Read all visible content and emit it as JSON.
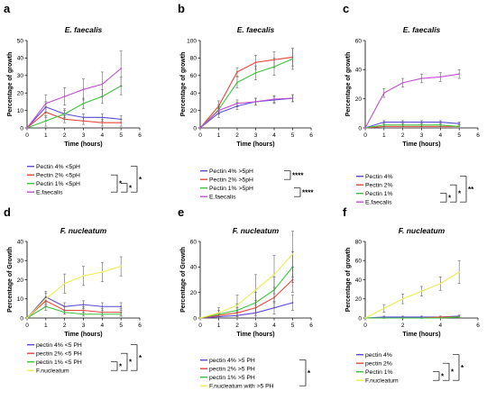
{
  "colors": {
    "purple": "#5b4bd6",
    "red": "#e8453c",
    "green": "#3cc43c",
    "magenta": "#c050d0",
    "yellow": "#ecec50",
    "axis": "#000000",
    "err": "#666666"
  },
  "chart_data": [
    {
      "type": "line",
      "panel": "a",
      "title": "E. faecalis",
      "xlabel": "Time (hours)",
      "ylabel": "Percentage of growth",
      "xlim": [
        0,
        6
      ],
      "ylim": [
        0,
        50
      ],
      "xticks": [
        "0",
        "1",
        "2",
        "3",
        "4",
        "5",
        "6"
      ],
      "yticks": [
        "0",
        "10",
        "20",
        "30",
        "40",
        "50"
      ],
      "x": [
        0,
        1,
        2,
        3,
        4,
        5
      ],
      "series": [
        {
          "name": "Pectin 4% <5pH",
          "color": "#5b4bd6",
          "values": [
            0,
            12,
            8,
            6,
            6,
            5
          ],
          "err": [
            0,
            3,
            2,
            2,
            2,
            2
          ]
        },
        {
          "name": "Pectin 2% <5pH",
          "color": "#e8453c",
          "values": [
            0,
            9,
            5,
            4,
            3,
            3
          ],
          "err": [
            0,
            3,
            2,
            2,
            2,
            2
          ]
        },
        {
          "name": "Pectin 1% <5pH",
          "color": "#3cc43c",
          "values": [
            0,
            4,
            8,
            14,
            18,
            24
          ],
          "err": [
            0,
            3,
            3,
            3,
            4,
            5
          ]
        },
        {
          "name": "E.faecalis",
          "color": "#c050d0",
          "values": [
            0,
            14,
            18,
            22,
            25,
            34
          ],
          "err": [
            0,
            5,
            5,
            6,
            7,
            10
          ]
        }
      ],
      "brackets": [
        {
          "from": 1,
          "to": 3,
          "label": "*"
        },
        {
          "from": 2,
          "to": 3,
          "label": "*"
        },
        {
          "from": 0,
          "to": 3,
          "label": "*"
        }
      ]
    },
    {
      "type": "line",
      "panel": "b",
      "title": "E. faecalis",
      "xlabel": "Time (hours)",
      "ylabel": "Percentage of growth",
      "xlim": [
        0,
        6
      ],
      "ylim": [
        0,
        100
      ],
      "xticks": [
        "0",
        "1",
        "2",
        "3",
        "4",
        "5",
        "6"
      ],
      "yticks": [
        "0",
        "20",
        "40",
        "60",
        "80",
        "100"
      ],
      "x": [
        0,
        1,
        2,
        3,
        4,
        5
      ],
      "series": [
        {
          "name": "Pectin 4% >5pH",
          "color": "#5b4bd6",
          "values": [
            0,
            17,
            25,
            30,
            32,
            34
          ],
          "err": [
            0,
            5,
            4,
            4,
            4,
            4
          ]
        },
        {
          "name": "Pectin 2% >5pH",
          "color": "#e8453c",
          "values": [
            0,
            25,
            64,
            75,
            78,
            81
          ],
          "err": [
            0,
            6,
            5,
            8,
            9,
            10
          ]
        },
        {
          "name": "Pectin 1% >5pH",
          "color": "#3cc43c",
          "values": [
            0,
            21,
            52,
            63,
            70,
            79
          ],
          "err": [
            0,
            5,
            6,
            8,
            10,
            12
          ]
        },
        {
          "name": "E.faecalis",
          "color": "#c050d0",
          "values": [
            0,
            20,
            28,
            30,
            33,
            34
          ],
          "err": [
            0,
            4,
            4,
            4,
            4,
            4
          ]
        }
      ],
      "brackets": [
        {
          "from": 0,
          "to": 1,
          "label": "****"
        },
        {
          "from": 2,
          "to": 3,
          "label": "****"
        }
      ]
    },
    {
      "type": "line",
      "panel": "c",
      "title": "E. faecalis",
      "xlabel": "Time (hours)",
      "ylabel": "Percentage of growth",
      "xlim": [
        0,
        6
      ],
      "ylim": [
        0,
        60
      ],
      "xticks": [
        "0",
        "1",
        "2",
        "3",
        "4",
        "5",
        "6"
      ],
      "yticks": [
        "0",
        "20",
        "40",
        "60"
      ],
      "x": [
        0,
        1,
        2,
        3,
        4,
        5
      ],
      "series": [
        {
          "name": "Pectin 4%",
          "color": "#5b4bd6",
          "values": [
            0,
            4,
            4,
            4,
            4,
            3
          ],
          "err": [
            0,
            1,
            1,
            1,
            1,
            1
          ]
        },
        {
          "name": "Pectin 2%",
          "color": "#e8453c",
          "values": [
            0,
            1,
            1,
            1,
            1,
            1
          ],
          "err": [
            0,
            1,
            1,
            1,
            1,
            1
          ]
        },
        {
          "name": "Pectin 1%",
          "color": "#3cc43c",
          "values": [
            0,
            2,
            2,
            2,
            2,
            1
          ],
          "err": [
            0,
            1,
            1,
            1,
            1,
            1
          ]
        },
        {
          "name": "E.faecalis",
          "color": "#c050d0",
          "values": [
            0,
            24,
            31,
            34,
            35,
            37
          ],
          "err": [
            0,
            3,
            3,
            3,
            3,
            3
          ]
        }
      ],
      "brackets": [
        {
          "from": 2,
          "to": 3,
          "label": "*"
        },
        {
          "from": 1,
          "to": 3,
          "label": "*"
        },
        {
          "from": 0,
          "to": 3,
          "label": "**"
        }
      ]
    },
    {
      "type": "line",
      "panel": "d",
      "title": "F. nucleatum",
      "xlabel": "Time (hours)",
      "ylabel": "Percentage of Growth",
      "xlim": [
        0,
        6
      ],
      "ylim": [
        0,
        40
      ],
      "xticks": [
        "0",
        "1",
        "2",
        "3",
        "4",
        "5",
        "6"
      ],
      "yticks": [
        "0",
        "10",
        "20",
        "30",
        "40"
      ],
      "x": [
        0,
        1,
        2,
        3,
        4,
        5
      ],
      "series": [
        {
          "name": "pectin 4% <5 PH",
          "color": "#5b4bd6",
          "values": [
            0,
            11,
            6,
            7,
            6,
            6
          ],
          "err": [
            0,
            2,
            2,
            2,
            2,
            2
          ]
        },
        {
          "name": "pectin 2% <5 PH",
          "color": "#e8453c",
          "values": [
            0,
            9,
            4,
            4,
            3,
            3
          ],
          "err": [
            0,
            2,
            2,
            2,
            2,
            2
          ]
        },
        {
          "name": "pectin 1% <5 PH",
          "color": "#3cc43c",
          "values": [
            0,
            6,
            3,
            2,
            2,
            2
          ],
          "err": [
            0,
            2,
            1,
            1,
            1,
            1
          ]
        },
        {
          "name": "F.nucleatum",
          "color": "#ecec50",
          "values": [
            0,
            10,
            18,
            22,
            24,
            27
          ],
          "err": [
            0,
            4,
            5,
            5,
            5,
            5
          ]
        }
      ],
      "brackets": [
        {
          "from": 2,
          "to": 3,
          "label": "*"
        },
        {
          "from": 1,
          "to": 3,
          "label": "*"
        },
        {
          "from": 0,
          "to": 3,
          "label": "*"
        }
      ]
    },
    {
      "type": "line",
      "panel": "e",
      "title": "F. nucleatum",
      "xlabel": "Time (hours)",
      "ylabel": "Percentage of Growth",
      "xlim": [
        0,
        6
      ],
      "ylim": [
        0,
        60
      ],
      "xticks": [
        "0",
        "1",
        "2",
        "3",
        "4",
        "5",
        "6"
      ],
      "yticks": [
        "0",
        "20",
        "40",
        "60"
      ],
      "x": [
        0,
        1,
        2,
        3,
        4,
        5
      ],
      "series": [
        {
          "name": "pectin 4% >5 PH",
          "color": "#5b4bd6",
          "values": [
            0,
            1,
            2,
            4,
            8,
            12
          ],
          "err": [
            0,
            2,
            3,
            4,
            5,
            6
          ]
        },
        {
          "name": "pectin 2% >5 PH",
          "color": "#e8453c",
          "values": [
            0,
            2,
            4,
            8,
            16,
            30
          ],
          "err": [
            0,
            2,
            4,
            6,
            8,
            10
          ]
        },
        {
          "name": "pectin 1% >5 PH",
          "color": "#3cc43c",
          "values": [
            0,
            3,
            6,
            12,
            22,
            40
          ],
          "err": [
            0,
            3,
            5,
            8,
            10,
            12
          ]
        },
        {
          "name": "F.nucleatum with >5 PH",
          "color": "#ecec50",
          "values": [
            0,
            4,
            10,
            22,
            34,
            50
          ],
          "err": [
            0,
            4,
            8,
            12,
            15,
            18
          ]
        }
      ],
      "brackets": [
        {
          "from": 0,
          "to": 3,
          "label": "*"
        }
      ]
    },
    {
      "type": "line",
      "panel": "f",
      "title": "F. nucleatum",
      "xlabel": "Time (hours)",
      "ylabel": "Percentage of growth",
      "xlim": [
        0,
        6
      ],
      "ylim": [
        0,
        80
      ],
      "xticks": [
        "0",
        "2",
        "4",
        "6"
      ],
      "yticks": [
        "0",
        "20",
        "40",
        "60",
        "80"
      ],
      "x": [
        0,
        1,
        2,
        3,
        4,
        5
      ],
      "series": [
        {
          "name": "pectin 4%",
          "color": "#5b4bd6",
          "values": [
            0,
            1,
            1,
            1,
            1,
            2
          ],
          "err": [
            0,
            1,
            1,
            1,
            1,
            1
          ]
        },
        {
          "name": "pectin 2%",
          "color": "#e8453c",
          "values": [
            0,
            0,
            0,
            0,
            1,
            1
          ],
          "err": [
            0,
            0,
            0,
            0,
            0,
            0
          ]
        },
        {
          "name": "Pectin 1%",
          "color": "#3cc43c",
          "values": [
            0,
            0,
            0,
            0,
            0,
            1
          ],
          "err": [
            0,
            0,
            0,
            0,
            0,
            0
          ]
        },
        {
          "name": "F.nucleatum",
          "color": "#ecec50",
          "values": [
            0,
            10,
            20,
            28,
            36,
            48
          ],
          "err": [
            0,
            4,
            5,
            5,
            7,
            12
          ]
        }
      ],
      "brackets": [
        {
          "from": 2,
          "to": 3,
          "label": "*"
        },
        {
          "from": 1,
          "to": 3,
          "label": "*"
        },
        {
          "from": 0,
          "to": 3,
          "label": "*"
        }
      ]
    }
  ]
}
